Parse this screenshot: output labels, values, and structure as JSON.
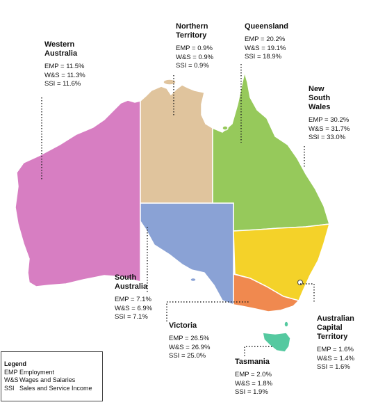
{
  "regions": [
    {
      "id": "wa",
      "name": "Western Australia",
      "name_lines": [
        "Western",
        "Australia"
      ],
      "color": "#d77ec2",
      "stats": [
        "EMP = 11.5%",
        "W&S = 11.3%",
        "SSI = 11.6%"
      ]
    },
    {
      "id": "nt",
      "name": "Northern Territory",
      "name_lines": [
        "Northern",
        "Territory"
      ],
      "color": "#e0c49d",
      "stats": [
        "EMP = 0.9%",
        "W&S = 0.9%",
        "SSI = 0.9%"
      ]
    },
    {
      "id": "qld",
      "name": "Queensland",
      "name_lines": [
        "Queensland"
      ],
      "color": "#96c95b",
      "stats": [
        "EMP = 20.2%",
        "W&S = 19.1%",
        "SSI = 18.9%"
      ]
    },
    {
      "id": "nsw",
      "name": "New South Wales",
      "name_lines": [
        "New",
        "South",
        "Wales"
      ],
      "color": "#f4d229",
      "stats": [
        "EMP = 30.2%",
        "W&S = 31.7%",
        "SSI = 33.0%"
      ]
    },
    {
      "id": "sa",
      "name": "South Australia",
      "name_lines": [
        "South",
        "Australia"
      ],
      "color": "#8aa2d5",
      "stats": [
        "EMP = 7.1%",
        "W&S = 6.9%",
        "SSI = 7.1%"
      ]
    },
    {
      "id": "vic",
      "name": "Victoria",
      "name_lines": [
        "Victoria"
      ],
      "color": "#f0894f",
      "stats": [
        "EMP = 26.5%",
        "W&S = 26.9%",
        "SSI = 25.0%"
      ]
    },
    {
      "id": "act",
      "name": "Australian Capital Territory",
      "name_lines": [
        "Australian",
        "Capital",
        "Territory"
      ],
      "color": "#ffffff",
      "stats": [
        "EMP = 1.6%",
        "W&S = 1.4%",
        "SSI = 1.6%"
      ]
    },
    {
      "id": "tas",
      "name": "Tasmania",
      "name_lines": [
        "Tasmania"
      ],
      "color": "#55c9a0",
      "stats": [
        "EMP = 2.0%",
        "W&S = 1.8%",
        "SSI = 1.9%"
      ]
    }
  ],
  "legend": {
    "title": "Legend",
    "items": [
      {
        "abbr": "EMP",
        "text": "Employment"
      },
      {
        "abbr": "W&S",
        "text": "Wages and Salaries"
      },
      {
        "abbr": "SSI",
        "text": "Sales and Service Income"
      }
    ]
  }
}
